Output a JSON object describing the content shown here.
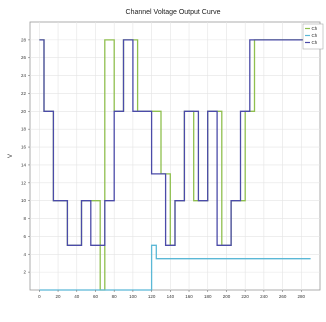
{
  "chart_data": {
    "type": "line",
    "title": "Channel Voltage Output Curve",
    "xlabel": "",
    "ylabel": "V",
    "xlim": [
      -10,
      300
    ],
    "ylim": [
      0,
      30
    ],
    "xticks": [
      "0",
      "20",
      "40",
      "60",
      "80",
      "100",
      "120",
      "140",
      "160",
      "180",
      "200",
      "220",
      "240",
      "260",
      "280"
    ],
    "yticks": [
      "2",
      "4",
      "6",
      "8",
      "10",
      "12",
      "14",
      "16",
      "18",
      "20",
      "22",
      "24",
      "26",
      "28"
    ],
    "grid": true,
    "legend": "top-right",
    "series": [
      {
        "name": "Ch",
        "color": "#8fbf4f",
        "points": [
          [
            0,
            28
          ],
          [
            5,
            28
          ],
          [
            5,
            20
          ],
          [
            15,
            20
          ],
          [
            15,
            10
          ],
          [
            30,
            10
          ],
          [
            30,
            5
          ],
          [
            45,
            5
          ],
          [
            45,
            10
          ],
          [
            65,
            10
          ],
          [
            65,
            0
          ],
          [
            70,
            0
          ],
          [
            70,
            28
          ],
          [
            80,
            28
          ],
          [
            80,
            20
          ],
          [
            90,
            20
          ],
          [
            90,
            28
          ],
          [
            105,
            28
          ],
          [
            105,
            20
          ],
          [
            130,
            20
          ],
          [
            130,
            13
          ],
          [
            140,
            13
          ],
          [
            140,
            5
          ],
          [
            145,
            5
          ],
          [
            145,
            10
          ],
          [
            155,
            10
          ],
          [
            155,
            20
          ],
          [
            165,
            20
          ],
          [
            165,
            10
          ],
          [
            180,
            10
          ],
          [
            180,
            20
          ],
          [
            195,
            20
          ],
          [
            195,
            5
          ],
          [
            205,
            5
          ],
          [
            205,
            10
          ],
          [
            220,
            10
          ],
          [
            220,
            20
          ],
          [
            230,
            20
          ],
          [
            230,
            28
          ],
          [
            290,
            28
          ]
        ]
      },
      {
        "name": "Ch",
        "color": "#5bb8d6",
        "points": [
          [
            0,
            0
          ],
          [
            120,
            0
          ],
          [
            120,
            5
          ],
          [
            125,
            5
          ],
          [
            125,
            3.5
          ],
          [
            290,
            3.5
          ]
        ]
      },
      {
        "name": "Ch",
        "color": "#4b4ba8",
        "points": [
          [
            0,
            28
          ],
          [
            5,
            28
          ],
          [
            5,
            20
          ],
          [
            15,
            20
          ],
          [
            15,
            10
          ],
          [
            30,
            10
          ],
          [
            30,
            5
          ],
          [
            45,
            5
          ],
          [
            45,
            10
          ],
          [
            55,
            10
          ],
          [
            55,
            5
          ],
          [
            70,
            5
          ],
          [
            70,
            10
          ],
          [
            80,
            10
          ],
          [
            80,
            20
          ],
          [
            90,
            20
          ],
          [
            90,
            28
          ],
          [
            100,
            28
          ],
          [
            100,
            20
          ],
          [
            120,
            20
          ],
          [
            120,
            13
          ],
          [
            135,
            13
          ],
          [
            135,
            5
          ],
          [
            145,
            5
          ],
          [
            145,
            10
          ],
          [
            155,
            10
          ],
          [
            155,
            20
          ],
          [
            170,
            20
          ],
          [
            170,
            10
          ],
          [
            180,
            10
          ],
          [
            180,
            20
          ],
          [
            190,
            20
          ],
          [
            190,
            5
          ],
          [
            205,
            5
          ],
          [
            205,
            10
          ],
          [
            215,
            10
          ],
          [
            215,
            20
          ],
          [
            225,
            20
          ],
          [
            225,
            28
          ],
          [
            290,
            28
          ]
        ]
      }
    ]
  }
}
